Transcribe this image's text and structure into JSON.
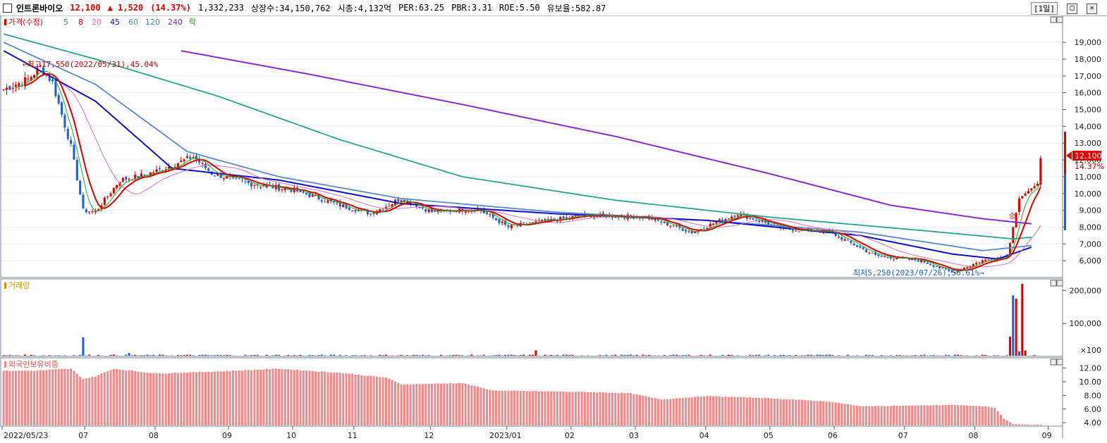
{
  "header": {
    "name": "인트론바이오",
    "price": "12,100",
    "change": "▲ 1,520",
    "change_pct": "(14.37%)",
    "volume": "1,332,233",
    "listed": "상장수:34,150,762",
    "mcap": "시총:4,132억",
    "per": "PER:63.25",
    "pbr": "PBR:3.31",
    "roe": "ROE:5.50",
    "float": "유보율:582.87",
    "period": "[1일]"
  },
  "colors": {
    "up": "#e00000",
    "down": "#1f5fd0",
    "ma5": "#22aa22",
    "ma8": "#e00000",
    "ma20": "#e070c0",
    "ma45": "#1010c8",
    "ma60": "#5a8ac8",
    "ma120": "#2aa58a",
    "ma240": "#8a2ad0",
    "foreign": "#f08a8a"
  },
  "chart_data": [
    {
      "type": "candlestick",
      "legend": [
        "가격(수정)",
        "5",
        "8",
        "20",
        "45",
        "60",
        "120",
        "240",
        "락"
      ],
      "y_ticks": [
        "19,000",
        "18,000",
        "17,000",
        "16,000",
        "15,000",
        "14,000",
        "13,000",
        "12,000",
        "11,000",
        "10,000",
        "9,000",
        "8,000",
        "7,000",
        "6,000"
      ],
      "ylim": [
        5000,
        20600
      ],
      "x_ticks": [
        "2022/05/23",
        "07",
        "08",
        "09",
        "10",
        "11",
        "12",
        "2023/01",
        "02",
        "03",
        "04",
        "05",
        "06",
        "07",
        "08",
        "09"
      ],
      "x_tick_bar": [
        0,
        27,
        50,
        74,
        95,
        115,
        140,
        165,
        186,
        207,
        230,
        251,
        272,
        295,
        318,
        342
      ],
      "n_bars": 340,
      "price_anchors": [
        [
          0,
          16200
        ],
        [
          8,
          16800
        ],
        [
          12,
          17550
        ],
        [
          16,
          16600
        ],
        [
          22,
          12800
        ],
        [
          26,
          9000
        ],
        [
          30,
          8900
        ],
        [
          38,
          10800
        ],
        [
          46,
          11100
        ],
        [
          54,
          11600
        ],
        [
          62,
          12200
        ],
        [
          68,
          11200
        ],
        [
          80,
          10600
        ],
        [
          95,
          10200
        ],
        [
          110,
          9300
        ],
        [
          120,
          8800
        ],
        [
          130,
          9700
        ],
        [
          140,
          8900
        ],
        [
          155,
          9100
        ],
        [
          165,
          8000
        ],
        [
          175,
          8300
        ],
        [
          190,
          8700
        ],
        [
          210,
          8600
        ],
        [
          225,
          7700
        ],
        [
          240,
          8800
        ],
        [
          255,
          7900
        ],
        [
          270,
          7700
        ],
        [
          285,
          6300
        ],
        [
          300,
          6000
        ],
        [
          310,
          5300
        ],
        [
          320,
          6000
        ],
        [
          328,
          6300
        ],
        [
          332,
          9700
        ],
        [
          336,
          10300
        ],
        [
          338,
          10580
        ],
        [
          339,
          12100
        ]
      ],
      "ma_anchors": {
        "ma240": [
          [
            58,
            18500
          ],
          [
            100,
            17100
          ],
          [
            150,
            15300
          ],
          [
            200,
            13400
          ],
          [
            250,
            11200
          ],
          [
            290,
            9300
          ],
          [
            320,
            8500
          ],
          [
            336,
            8200
          ]
        ],
        "ma120": [
          [
            0,
            19500
          ],
          [
            30,
            18000
          ],
          [
            70,
            15800
          ],
          [
            110,
            13200
          ],
          [
            150,
            11000
          ],
          [
            200,
            9600
          ],
          [
            250,
            8600
          ],
          [
            300,
            7800
          ],
          [
            330,
            7300
          ],
          [
            336,
            7400
          ]
        ],
        "ma60": [
          [
            0,
            19000
          ],
          [
            30,
            16500
          ],
          [
            60,
            12500
          ],
          [
            90,
            11000
          ],
          [
            130,
            9700
          ],
          [
            180,
            8900
          ],
          [
            230,
            8400
          ],
          [
            280,
            7700
          ],
          [
            320,
            6600
          ],
          [
            336,
            6900
          ]
        ],
        "ma45": [
          [
            0,
            18500
          ],
          [
            30,
            15500
          ],
          [
            55,
            11500
          ],
          [
            90,
            10800
          ],
          [
            130,
            9400
          ],
          [
            180,
            8800
          ],
          [
            230,
            8400
          ],
          [
            280,
            7500
          ],
          [
            310,
            6400
          ],
          [
            325,
            6100
          ],
          [
            336,
            6800
          ]
        ]
      },
      "high_annotation": "←최고17,550(2022/05/31),45.04%",
      "low_annotation": "최저5,250(2023/07/26),56.61%→",
      "last_price_label": "12,100",
      "last_pct_label": "14.37%",
      "event_label": "승"
    },
    {
      "type": "bar",
      "legend": [
        "거래량"
      ],
      "y_ticks": [
        "200,000",
        "100,000"
      ],
      "y_unit": "×100",
      "ylim": [
        0,
        235000
      ],
      "spikes": [
        [
          26,
          58000,
          "down"
        ],
        [
          41,
          10000,
          "down"
        ],
        [
          174,
          18000,
          "up"
        ],
        [
          329,
          60000,
          "up"
        ],
        [
          330,
          185000,
          "down"
        ],
        [
          331,
          175000,
          "up"
        ],
        [
          332,
          15000,
          "down"
        ],
        [
          333,
          220000,
          "up"
        ],
        [
          334,
          18000,
          "up"
        ]
      ]
    },
    {
      "type": "bar",
      "legend": [
        "외국인보유비중"
      ],
      "y_ticks": [
        "12.00",
        "10.00",
        "8.00",
        "6.00",
        "4.00"
      ],
      "ylim": [
        3.5,
        13.5
      ],
      "anchors": [
        [
          0,
          11.6
        ],
        [
          10,
          11.6
        ],
        [
          22,
          11.9
        ],
        [
          26,
          10.4
        ],
        [
          30,
          10.8
        ],
        [
          36,
          11.9
        ],
        [
          50,
          11.2
        ],
        [
          70,
          11.5
        ],
        [
          90,
          11.9
        ],
        [
          110,
          11.3
        ],
        [
          125,
          10.6
        ],
        [
          130,
          9.6
        ],
        [
          150,
          9.8
        ],
        [
          160,
          8.7
        ],
        [
          190,
          8.5
        ],
        [
          205,
          8.3
        ],
        [
          215,
          7.4
        ],
        [
          230,
          7.9
        ],
        [
          250,
          7.6
        ],
        [
          270,
          7.1
        ],
        [
          280,
          6.4
        ],
        [
          310,
          6.6
        ],
        [
          320,
          6.4
        ],
        [
          324,
          6.2
        ],
        [
          327,
          4.6
        ],
        [
          330,
          3.8
        ],
        [
          336,
          3.7
        ]
      ]
    }
  ]
}
